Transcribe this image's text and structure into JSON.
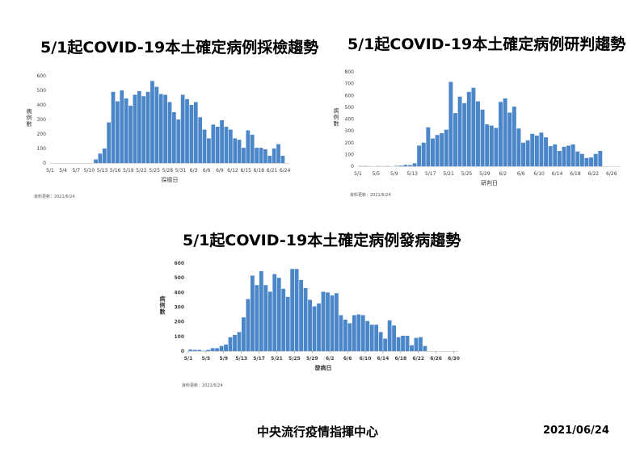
{
  "charts": [
    {
      "title": "5/1起COVID-19本土確定病例採檢趨勢",
      "source_note": "資料更新：2021/6/24"
    },
    {
      "title": "5/1起COVID-19本土確定病例研判趨勢",
      "source_note": "資料更新：2021/6/24"
    },
    {
      "title": "5/1起COVID-19本土確定病例發病趨勢",
      "source_note": "資料更新：2021/6/24"
    }
  ],
  "footer": {
    "organization": "中央流行疫情指揮中心",
    "date": "2021/06/24"
  },
  "colors": {
    "bar": "#4a86c8",
    "axis": "#d9d9d9",
    "tick_text": "#404040"
  },
  "chart_data": [
    {
      "type": "bar",
      "title": "5/1起COVID-19本土確定病例採檢趨勢",
      "xlabel": "採檢日",
      "ylabel": "病例數",
      "ylim": [
        0,
        600
      ],
      "yticks": [
        0,
        100,
        200,
        300,
        400,
        500,
        600
      ],
      "grid": false,
      "legend": null,
      "start": "5/1",
      "tick_every": 3,
      "xtick_labels": [
        "5/1",
        "5/4",
        "5/7",
        "5/10",
        "5/13",
        "5/16",
        "5/19",
        "5/22",
        "5/25",
        "5/28",
        "5/31",
        "6/3",
        "6/6",
        "6/9",
        "6/12",
        "6/15",
        "6/18",
        "6/21",
        "6/24"
      ],
      "values": [
        0,
        0,
        0,
        0,
        0,
        0,
        0,
        0,
        0,
        0,
        25,
        65,
        100,
        280,
        490,
        425,
        500,
        445,
        395,
        470,
        495,
        460,
        490,
        565,
        525,
        475,
        470,
        420,
        350,
        300,
        470,
        440,
        400,
        420,
        315,
        230,
        170,
        265,
        250,
        295,
        250,
        230,
        170,
        160,
        105,
        225,
        195,
        105,
        105,
        95,
        50,
        100,
        130,
        50,
        0
      ]
    },
    {
      "type": "bar",
      "title": "5/1起COVID-19本土確定病例研判趨勢",
      "xlabel": "研判日",
      "ylabel": "病例數",
      "ylim": [
        0,
        800
      ],
      "yticks": [
        0,
        100,
        200,
        300,
        400,
        500,
        600,
        700,
        800
      ],
      "grid": false,
      "legend": null,
      "start": "5/1",
      "tick_every": 4,
      "xtick_labels": [
        "5/1",
        "5/5",
        "5/9",
        "5/13",
        "5/17",
        "5/21",
        "5/25",
        "5/29",
        "6/2",
        "6/6",
        "6/10",
        "6/14",
        "6/18",
        "6/22",
        "6/26"
      ],
      "values": [
        2,
        2,
        1,
        0,
        2,
        1,
        2,
        0,
        3,
        5,
        12,
        10,
        25,
        175,
        200,
        330,
        235,
        265,
        280,
        310,
        715,
        450,
        590,
        535,
        630,
        665,
        550,
        480,
        355,
        345,
        325,
        545,
        575,
        455,
        505,
        320,
        200,
        220,
        275,
        260,
        285,
        245,
        170,
        185,
        130,
        165,
        175,
        185,
        125,
        105,
        70,
        75,
        105,
        130,
        0,
        0,
        0,
        0
      ]
    },
    {
      "type": "bar",
      "title": "5/1起COVID-19本土確定病例發病趨勢",
      "xlabel": "發病日",
      "ylabel": "病例數",
      "ylim": [
        0,
        600
      ],
      "yticks": [
        0,
        100,
        200,
        300,
        400,
        500,
        600
      ],
      "grid": false,
      "legend": null,
      "start": "5/1",
      "tick_every": 4,
      "xtick_labels": [
        "5/1",
        "5/5",
        "5/9",
        "5/13",
        "5/17",
        "5/21",
        "5/25",
        "5/29",
        "6/2",
        "6/6",
        "6/10",
        "6/14",
        "6/18",
        "6/22",
        "6/26",
        "6/30"
      ],
      "values": [
        10,
        8,
        8,
        2,
        8,
        20,
        20,
        35,
        45,
        95,
        110,
        130,
        230,
        355,
        515,
        450,
        545,
        450,
        405,
        525,
        500,
        425,
        370,
        560,
        560,
        485,
        430,
        350,
        305,
        325,
        405,
        400,
        380,
        395,
        245,
        215,
        190,
        245,
        250,
        245,
        205,
        180,
        180,
        130,
        85,
        210,
        175,
        95,
        105,
        105,
        40,
        90,
        95,
        35,
        0,
        0,
        0,
        0,
        0,
        0,
        0
      ]
    }
  ]
}
